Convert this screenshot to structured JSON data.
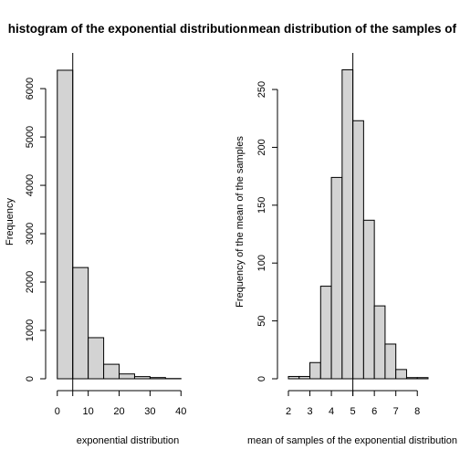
{
  "chart_data": [
    {
      "type": "bar",
      "histogram": true,
      "title": "histogram of the exponential distribution",
      "xlabel": "exponential distribution",
      "ylabel": "Frequency",
      "bin_edges": [
        0,
        5,
        10,
        15,
        20,
        25,
        30,
        35,
        40,
        45
      ],
      "values": [
        6380,
        2300,
        850,
        300,
        100,
        45,
        25,
        5,
        0
      ],
      "xlim": [
        -2,
        47
      ],
      "ylim": [
        0,
        6700
      ],
      "xticks": [
        0,
        10,
        20,
        30,
        40
      ],
      "xtick_labels": [
        "0",
        "10",
        "20",
        "30",
        "40"
      ],
      "yticks": [
        0,
        1000,
        2000,
        3000,
        4000,
        5000,
        6000
      ],
      "ytick_labels": [
        "0",
        "1000",
        "2000",
        "3000",
        "4000",
        "5000",
        "6000"
      ],
      "reference_line_x": 5,
      "bar_color": "#d3d3d3"
    },
    {
      "type": "bar",
      "histogram": true,
      "title": "mean distribution of the samples of",
      "xlabel": "mean of samples of the exponential distribution",
      "ylabel": "Frequency of the mean of the samples",
      "bin_edges": [
        2,
        2.5,
        3,
        3.5,
        4,
        4.5,
        5,
        5.5,
        6,
        6.5,
        7,
        7.5,
        8,
        8.5
      ],
      "values": [
        2,
        2,
        14,
        80,
        174,
        267,
        223,
        137,
        63,
        30,
        8,
        1,
        1
      ],
      "xlim": [
        2,
        8.5
      ],
      "ylim": [
        0,
        280
      ],
      "xticks": [
        2,
        3,
        4,
        5,
        6,
        7,
        8
      ],
      "xtick_labels": [
        "2",
        "3",
        "4",
        "5",
        "6",
        "7",
        "8"
      ],
      "yticks": [
        0,
        50,
        100,
        150,
        200,
        250
      ],
      "ytick_labels": [
        "0",
        "50",
        "100",
        "150",
        "200",
        "250"
      ],
      "reference_line_x": 5,
      "bar_color": "#d3d3d3"
    }
  ]
}
